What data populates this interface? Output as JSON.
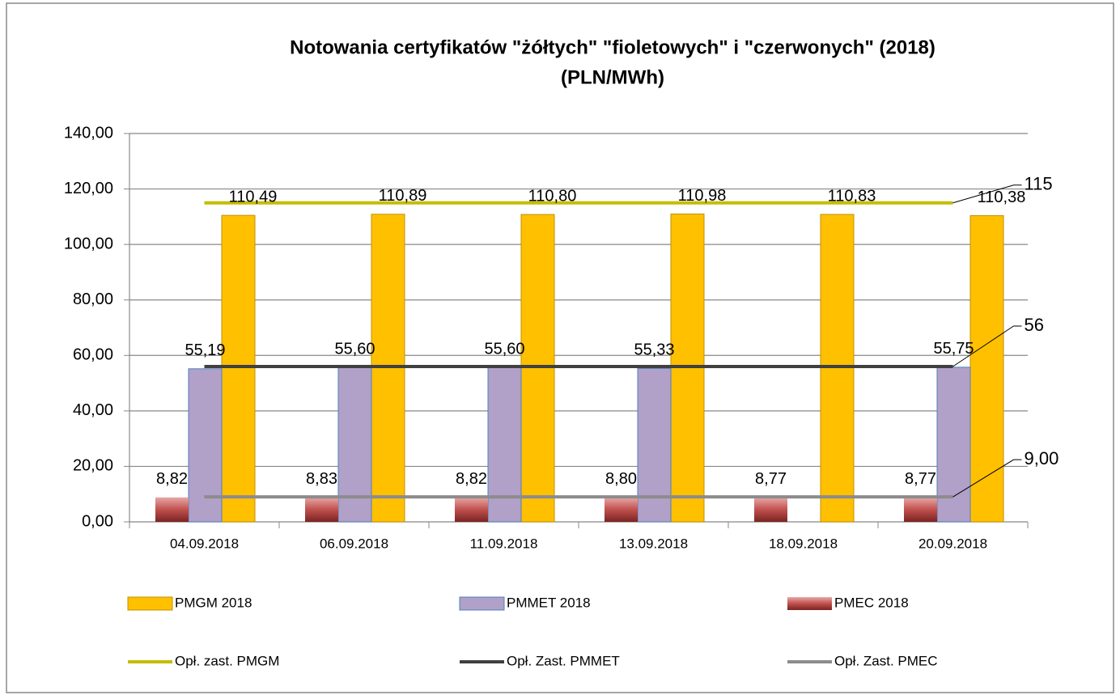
{
  "chart_data": {
    "type": "bar",
    "title": "Notowania certyfikatów \"żółtych\" \"fioletowych\" i \"czerwonych\" (2018)",
    "subtitle": "(PLN/MWh)",
    "categories": [
      "04.09.2018",
      "06.09.2018",
      "11.09.2018",
      "13.09.2018",
      "18.09.2018",
      "20.09.2018"
    ],
    "series": [
      {
        "name": "PMGM 2018",
        "type": "bar",
        "color": "#ffc000",
        "values": [
          110.49,
          110.89,
          110.8,
          110.98,
          110.83,
          110.38
        ],
        "value_labels": [
          "110,49",
          "110,89",
          "110,80",
          "110,98",
          "110,83",
          "110,38"
        ]
      },
      {
        "name": "PMMET 2018",
        "type": "bar",
        "color": "#b1a0c7",
        "values": [
          55.19,
          55.6,
          55.6,
          55.33,
          null,
          55.75
        ],
        "value_labels": [
          "55,19",
          "55,60",
          "55,60",
          "55,33",
          null,
          "55,75"
        ]
      },
      {
        "name": "PMEC 2018",
        "type": "bar",
        "color": "#c0504d",
        "values": [
          8.82,
          8.83,
          8.82,
          8.8,
          8.77,
          8.77
        ],
        "value_labels": [
          "8,82",
          "8,83",
          "8,82",
          "8,80",
          "8,77",
          "8,77"
        ]
      },
      {
        "name": "Opł. zast. PMGM",
        "type": "line",
        "color": "#c4bd00",
        "values": [
          115,
          115,
          115,
          115,
          115,
          115
        ],
        "value_labels": [
          null,
          null,
          null,
          null,
          null,
          "115"
        ]
      },
      {
        "name": "Opł. Zast. PMMET",
        "type": "line",
        "color": "#404040",
        "values": [
          56,
          56,
          56,
          56,
          56,
          56
        ],
        "value_labels": [
          null,
          null,
          null,
          null,
          null,
          "56"
        ]
      },
      {
        "name": "Opł. Zast. PMEC",
        "type": "line",
        "color": "#8c8c8c",
        "values": [
          9,
          9,
          9,
          9,
          9,
          9
        ],
        "value_labels": [
          null,
          null,
          null,
          null,
          null,
          "9,00"
        ]
      }
    ],
    "ylim": [
      0,
      140
    ],
    "yticks": [
      {
        "value": 0,
        "label": "0,00"
      },
      {
        "value": 20,
        "label": "20,00"
      },
      {
        "value": 40,
        "label": "40,00"
      },
      {
        "value": 60,
        "label": "60,00"
      },
      {
        "value": 80,
        "label": "80,00"
      },
      {
        "value": 100,
        "label": "100,00"
      },
      {
        "value": 120,
        "label": "120,00"
      },
      {
        "value": 140,
        "label": "140,00"
      }
    ],
    "grid": true
  }
}
